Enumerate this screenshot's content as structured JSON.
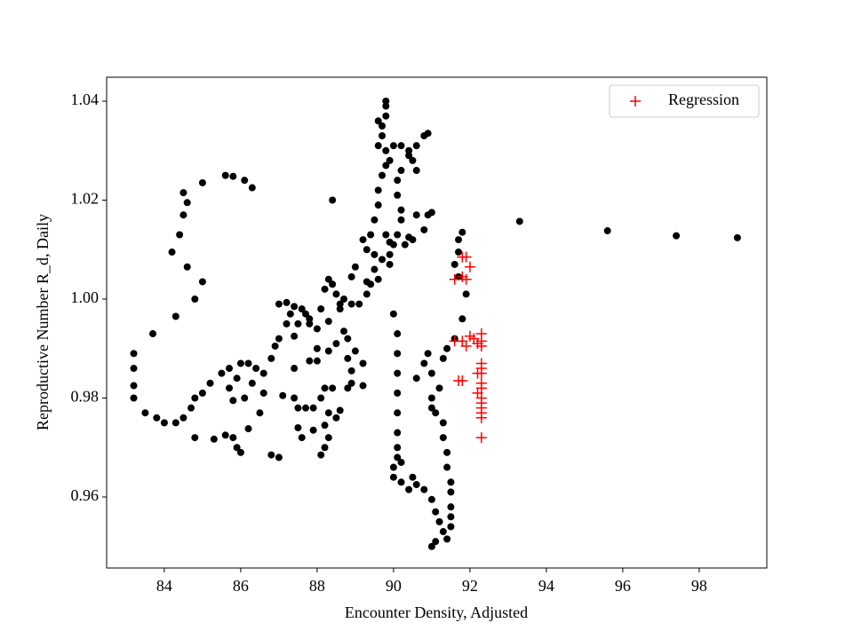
{
  "chart_data": {
    "type": "scatter",
    "xlabel": "Encounter Density, Adjusted",
    "ylabel": "Reproductive Number R_d, Daily",
    "xlim": [
      82.49,
      99.77
    ],
    "ylim": [
      0.94565,
      1.04484
    ],
    "xticks": [
      84,
      86,
      88,
      90,
      92,
      94,
      96,
      98
    ],
    "yticks": [
      0.96,
      0.98,
      {
        "value": 1,
        "label": "1.00"
      },
      1.02,
      1.04
    ],
    "legend": "upper right",
    "series": [
      {
        "color": "#000000",
        "marker": "o",
        "x": [
          83.2,
          83.2,
          83.2,
          83.2,
          83.5,
          83.8,
          84.0,
          84.3,
          84.5,
          84.7,
          84.8,
          85.0,
          85.2,
          85.5,
          85.7,
          86.0,
          86.2,
          86.4,
          86.6,
          86.8,
          83.7,
          84.3,
          84.8,
          85.0,
          84.6,
          84.2,
          84.4,
          84.5,
          84.6,
          84.5,
          85.0,
          85.6,
          85.8,
          86.1,
          86.3,
          84.8,
          85.3,
          85.6,
          85.8,
          85.9,
          86.0,
          86.2,
          86.8,
          87.0,
          86.5,
          86.1,
          85.8,
          85.7,
          85.9,
          86.3,
          86.6,
          87.1,
          87.0,
          87.2,
          87.4,
          87.6,
          87.3,
          87.2,
          87.0,
          86.9,
          87.5,
          87.7,
          87.8,
          88.0,
          88.1,
          88.2,
          88.3,
          88.4,
          88.5,
          88.7,
          88.9,
          89.1,
          89.3,
          89.4,
          89.5,
          89.7,
          89.9,
          89.5,
          89.3,
          89.2,
          89.4,
          89.5,
          89.6,
          89.6,
          89.7,
          89.8,
          89.9,
          89.8,
          89.6,
          89.7,
          89.7,
          89.6,
          89.8,
          89.8,
          89.8,
          90.0,
          90.2,
          90.4,
          90.6,
          90.8,
          90.9,
          90.5,
          90.6,
          90.4,
          90.2,
          90.1,
          90.1,
          90.2,
          90.2,
          90.1,
          90.3,
          90.5,
          90.8,
          90.9,
          90.6,
          90.0,
          89.8,
          89.9,
          89.6,
          89.3,
          88.0,
          88.0,
          87.8,
          88.3,
          88.5,
          88.7,
          88.8,
          89.0,
          89.2,
          88.8,
          88.9,
          88.9,
          89.2,
          88.8,
          88.4,
          88.2,
          88.1,
          87.9,
          87.7,
          87.5,
          87.5,
          87.6,
          87.9,
          88.2,
          88.3,
          88.5,
          88.6,
          88.3,
          88.2,
          88.1,
          87.4,
          87.4,
          88.4,
          88.6,
          88.3,
          87.4,
          87.8,
          90.0,
          90.1,
          90.1,
          90.1,
          90.1,
          90.1,
          90.1,
          90.1,
          90.1,
          90.0,
          90.2,
          90.0,
          90.2,
          90.4,
          90.6,
          90.5,
          90.8,
          91.0,
          91.1,
          91.2,
          91.3,
          91.1,
          91.0,
          91.4,
          91.5,
          91.5,
          91.5,
          91.5,
          91.5,
          91.4,
          91.4,
          91.3,
          91.3,
          91.1,
          91.0,
          91.0,
          91.2,
          91.0,
          91.3,
          91.4,
          91.6,
          91.8,
          91.9,
          91.7,
          91.6,
          91.7,
          91.7,
          91.8,
          90.8,
          90.6,
          90.9,
          93.3,
          95.6,
          97.4,
          99.0,
          91.0,
          90.4,
          89.9,
          89.0,
          88.9,
          88.6
        ],
        "values": [
          0.989,
          0.986,
          0.9825,
          0.98,
          0.977,
          0.976,
          0.975,
          0.975,
          0.976,
          0.978,
          0.98,
          0.981,
          0.983,
          0.985,
          0.986,
          0.987,
          0.987,
          0.986,
          0.985,
          0.988,
          0.993,
          0.9965,
          1.0,
          1.0035,
          1.0065,
          1.0095,
          1.013,
          1.017,
          1.0195,
          1.0215,
          1.0235,
          1.025,
          1.0248,
          1.024,
          1.0225,
          0.972,
          0.9717,
          0.9725,
          0.972,
          0.97,
          0.969,
          0.9738,
          0.9685,
          0.968,
          0.977,
          0.98,
          0.9795,
          0.982,
          0.984,
          0.983,
          0.981,
          0.9805,
          0.999,
          0.9993,
          0.9985,
          0.998,
          0.997,
          0.995,
          0.992,
          0.9905,
          0.995,
          0.997,
          0.995,
          0.994,
          0.998,
          1.002,
          1.004,
          1.003,
          1.001,
          1.0,
          0.999,
          0.999,
          1.001,
          1.003,
          1.006,
          1.008,
          1.007,
          1.009,
          1.01,
          1.012,
          1.013,
          1.016,
          1.019,
          1.022,
          1.025,
          1.027,
          1.028,
          1.03,
          1.031,
          1.033,
          1.035,
          1.036,
          1.037,
          1.039,
          1.04,
          1.031,
          1.031,
          1.03,
          1.031,
          1.033,
          1.0335,
          1.028,
          1.026,
          1.029,
          1.026,
          1.024,
          1.021,
          1.018,
          1.016,
          1.013,
          1.011,
          1.012,
          1.014,
          1.017,
          1.017,
          1.011,
          1.013,
          1.009,
          1.004,
          1.0035,
          0.99,
          0.9875,
          0.9875,
          0.9895,
          0.991,
          0.9935,
          0.992,
          0.9895,
          0.987,
          0.988,
          0.9855,
          0.983,
          0.9825,
          0.982,
          0.982,
          0.982,
          0.98,
          0.978,
          0.978,
          0.978,
          0.974,
          0.972,
          0.9735,
          0.9745,
          0.977,
          0.976,
          0.9775,
          0.972,
          0.97,
          0.9685,
          0.98,
          0.986,
          1.02,
          0.999,
          0.9955,
          0.9925,
          0.996,
          0.997,
          0.993,
          0.989,
          0.985,
          0.981,
          0.977,
          0.973,
          0.97,
          0.968,
          0.966,
          0.967,
          0.964,
          0.963,
          0.9615,
          0.9625,
          0.964,
          0.9615,
          0.9595,
          0.957,
          0.955,
          0.953,
          0.951,
          0.95,
          0.9515,
          0.954,
          0.956,
          0.958,
          0.961,
          0.963,
          0.966,
          0.969,
          0.972,
          0.975,
          0.977,
          0.978,
          0.98,
          0.982,
          0.985,
          0.988,
          0.99,
          0.992,
          0.996,
          1.001,
          1.0045,
          1.007,
          1.0095,
          1.012,
          1.0135,
          0.987,
          0.984,
          0.989,
          1.0157,
          1.0138,
          1.0128,
          1.0124,
          1.0175,
          1.0125,
          1.0115,
          1.0065,
          1.0045,
          0.998
        ]
      },
      {
        "name": "Regression",
        "color": "#ff0000",
        "marker": "+",
        "x": [
          91.6,
          91.8,
          91.9,
          91.9,
          92.0,
          91.8,
          91.6,
          91.8,
          91.9,
          92.0,
          92.1,
          92.3,
          92.3,
          92.3,
          92.2,
          91.7,
          91.8,
          92.3,
          92.3,
          92.3,
          92.2,
          92.3,
          92.3,
          92.2,
          92.3,
          92.3,
          92.3,
          92.3,
          92.3,
          92.3
        ],
        "values": [
          1.004,
          1.0085,
          1.0085,
          1.004,
          1.0065,
          1.0045,
          0.9915,
          0.9915,
          0.9905,
          0.9925,
          0.992,
          0.993,
          0.9915,
          0.9905,
          0.991,
          0.9835,
          0.9835,
          0.987,
          0.986,
          0.985,
          0.985,
          0.983,
          0.982,
          0.981,
          0.98,
          0.979,
          0.978,
          0.977,
          0.976,
          0.972
        ]
      }
    ]
  }
}
